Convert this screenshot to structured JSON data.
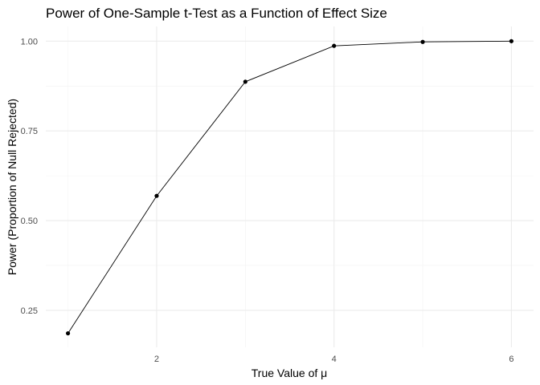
{
  "chart_data": {
    "type": "line",
    "title": "Power of One-Sample t-Test as a Function of Effect Size",
    "xlabel": "True Value of μ",
    "ylabel": "Power (Proportion of Null Rejected)",
    "x": [
      1,
      2,
      3,
      4,
      5,
      6
    ],
    "series": [
      {
        "name": "power",
        "values": [
          0.186,
          0.569,
          0.887,
          0.987,
          0.998,
          1.0
        ]
      }
    ],
    "xlim": [
      0.75,
      6.25
    ],
    "ylim": [
      0.147,
      1.041
    ],
    "x_ticks": [
      2,
      4,
      6
    ],
    "x_tick_labels": [
      "2",
      "4",
      "6"
    ],
    "x_minor": [
      1,
      3,
      5
    ],
    "y_ticks": [
      0.25,
      0.5,
      0.75,
      1.0
    ],
    "y_tick_labels": [
      "0.25",
      "0.50",
      "0.75",
      "1.00"
    ],
    "y_minor": [
      0.375,
      0.625,
      0.875
    ],
    "grid": true,
    "legend": "none"
  }
}
